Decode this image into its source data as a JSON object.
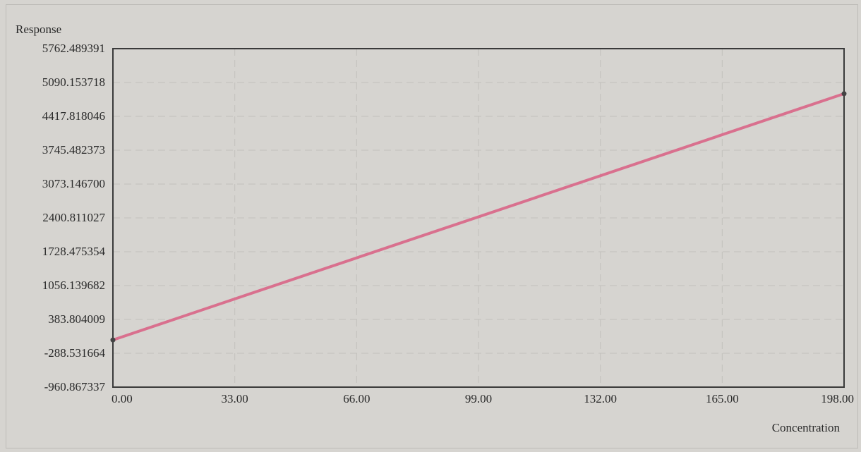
{
  "chart_data": {
    "type": "line",
    "ylabel": "Response",
    "xlabel": "Concentration",
    "x_ticks": [
      "0.00",
      "33.00",
      "66.00",
      "99.00",
      "132.00",
      "165.00",
      "198.00"
    ],
    "y_ticks": [
      "5762.489391",
      "5090.153718",
      "4417.818046",
      "3745.482373",
      "3073.146700",
      "2400.811027",
      "1728.475354",
      "1056.139682",
      "383.804009",
      "-288.531664",
      "-960.867337"
    ],
    "xlim": [
      0,
      198
    ],
    "ylim": [
      -960.867337,
      5762.489391
    ],
    "grid": true,
    "series": [
      {
        "color": "#d9708e",
        "x": [
          0,
          198
        ],
        "y": [
          -24,
          4868
        ]
      }
    ],
    "points": [
      [
        0,
        -24
      ],
      [
        198,
        4868
      ]
    ]
  },
  "colors": {
    "background": "#d6d4d0",
    "plot_border": "#3a3a3a",
    "grid": "#c2c0bc",
    "line": "#d9708e",
    "marker": "#444444"
  }
}
